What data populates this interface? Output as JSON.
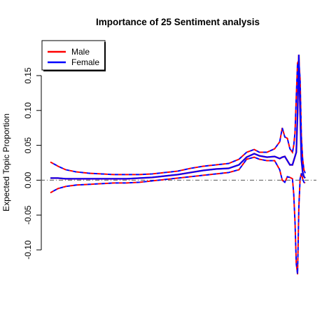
{
  "chart_data": {
    "type": "line",
    "title": "Importance of 25 Sentiment analysis",
    "xlabel": "",
    "ylabel": "Expected Topic Proportion",
    "ylim": [
      -0.1,
      0.15
    ],
    "y_ticks": [
      "-0.10",
      "-0.05",
      "0.00",
      "0.05",
      "0.10",
      "0.15"
    ],
    "x_axis_shown": false,
    "reference_line_y": 0,
    "legend_position": "top-left",
    "legend": [
      {
        "label": "Male",
        "color": "#ff0000"
      },
      {
        "label": "Female",
        "color": "#0000ff"
      }
    ],
    "x": [
      0.0,
      0.03,
      0.06,
      0.1,
      0.15,
      0.2,
      0.25,
      0.3,
      0.35,
      0.4,
      0.45,
      0.5,
      0.55,
      0.6,
      0.65,
      0.7,
      0.74,
      0.77,
      0.8,
      0.82,
      0.85,
      0.88,
      0.9,
      0.91,
      0.92,
      0.93,
      0.94,
      0.95,
      0.955,
      0.96,
      0.965,
      0.97,
      0.975,
      0.98,
      0.985,
      0.99,
      0.995,
      1.0
    ],
    "series": [
      {
        "name": "Male",
        "color": "#ff0000",
        "values": [
          0.003,
          0.003,
          0.002,
          0.002,
          0.002,
          0.002,
          0.002,
          0.002,
          0.003,
          0.004,
          0.006,
          0.008,
          0.011,
          0.014,
          0.016,
          0.017,
          0.022,
          0.033,
          0.038,
          0.035,
          0.033,
          0.034,
          0.031,
          0.033,
          0.034,
          0.028,
          0.022,
          0.022,
          0.028,
          0.034,
          0.04,
          0.095,
          0.18,
          0.1,
          0.03,
          0.012,
          0.005,
          0.003
        ],
        "upper": [
          0.026,
          0.02,
          0.015,
          0.012,
          0.01,
          0.009,
          0.008,
          0.008,
          0.008,
          0.009,
          0.011,
          0.013,
          0.017,
          0.02,
          0.022,
          0.024,
          0.03,
          0.04,
          0.044,
          0.04,
          0.04,
          0.045,
          0.055,
          0.075,
          0.062,
          0.06,
          0.045,
          0.04,
          0.05,
          0.068,
          0.12,
          0.168,
          0.172,
          0.145,
          0.062,
          0.03,
          0.015,
          0.01
        ],
        "lower": [
          -0.018,
          -0.012,
          -0.009,
          -0.007,
          -0.006,
          -0.005,
          -0.004,
          -0.004,
          -0.003,
          -0.001,
          0.001,
          0.003,
          0.005,
          0.007,
          0.009,
          0.011,
          0.015,
          0.03,
          0.033,
          0.03,
          0.028,
          0.028,
          0.015,
          0.0,
          -0.003,
          0.005,
          0.004,
          0.002,
          -0.02,
          -0.06,
          -0.12,
          -0.135,
          -0.04,
          0.002,
          0.01,
          0.002,
          -0.003,
          -0.004
        ]
      },
      {
        "name": "Female",
        "color": "#0000ff",
        "values": [
          0.003,
          0.003,
          0.002,
          0.002,
          0.002,
          0.002,
          0.002,
          0.002,
          0.003,
          0.004,
          0.006,
          0.008,
          0.011,
          0.014,
          0.016,
          0.017,
          0.022,
          0.033,
          0.038,
          0.035,
          0.033,
          0.034,
          0.031,
          0.033,
          0.034,
          0.028,
          0.022,
          0.022,
          0.028,
          0.034,
          0.04,
          0.095,
          0.18,
          0.1,
          0.03,
          0.012,
          0.005,
          0.003
        ],
        "upper": [
          0.026,
          0.02,
          0.015,
          0.012,
          0.01,
          0.009,
          0.008,
          0.008,
          0.008,
          0.009,
          0.011,
          0.013,
          0.017,
          0.02,
          0.022,
          0.024,
          0.03,
          0.04,
          0.044,
          0.04,
          0.04,
          0.045,
          0.055,
          0.075,
          0.062,
          0.06,
          0.045,
          0.04,
          0.05,
          0.068,
          0.12,
          0.168,
          0.172,
          0.145,
          0.062,
          0.03,
          0.015,
          0.01
        ],
        "lower": [
          -0.018,
          -0.012,
          -0.009,
          -0.007,
          -0.006,
          -0.005,
          -0.004,
          -0.004,
          -0.003,
          -0.001,
          0.001,
          0.003,
          0.005,
          0.007,
          0.009,
          0.011,
          0.015,
          0.03,
          0.033,
          0.03,
          0.028,
          0.028,
          0.015,
          0.0,
          -0.003,
          0.005,
          0.004,
          0.002,
          -0.02,
          -0.06,
          -0.12,
          -0.135,
          -0.04,
          0.002,
          0.01,
          0.002,
          -0.003,
          -0.004
        ]
      }
    ]
  }
}
